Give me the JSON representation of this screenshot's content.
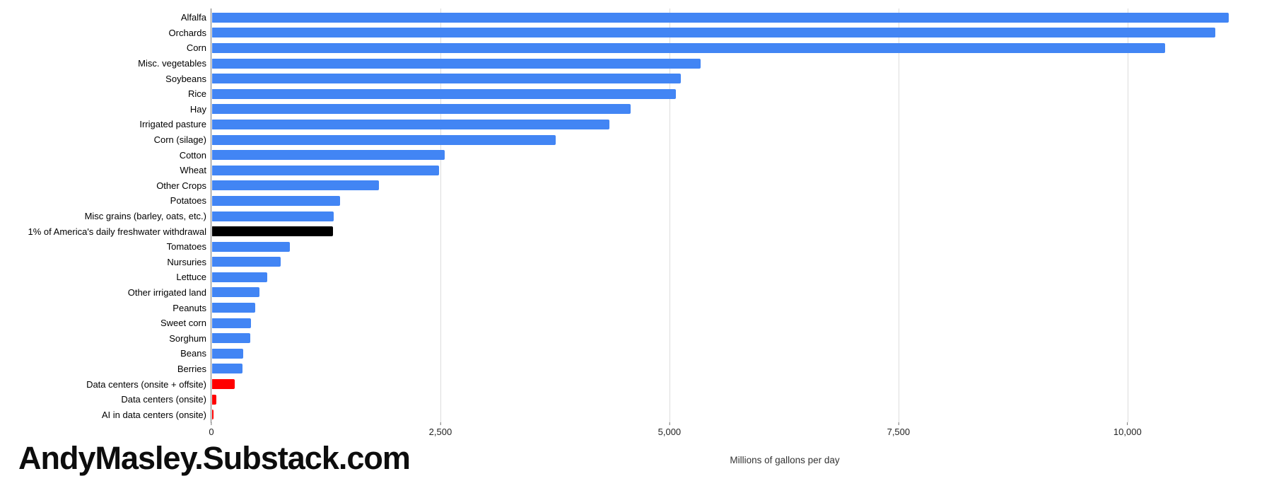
{
  "chart_data": {
    "type": "bar",
    "orientation": "horizontal",
    "title": "",
    "xlabel": "Millions of gallons per day",
    "xlim": [
      0,
      11730
    ],
    "grid": true,
    "legend": "none",
    "x_ticks": [
      {
        "label": "0",
        "value": 0
      },
      {
        "label": "2,500",
        "value": 2500
      },
      {
        "label": "5,000",
        "value": 5000
      },
      {
        "label": "7,500",
        "value": 7500
      },
      {
        "label": "10,000",
        "value": 10000
      }
    ],
    "colors": {
      "crops_blue": "#4285f4",
      "benchmark_black": "#000000",
      "datacenter_red": "#ff0000"
    },
    "series": [
      {
        "label": "Alfalfa",
        "value": 11100,
        "color": "#4285f4"
      },
      {
        "label": "Orchards",
        "value": 10950,
        "color": "#4285f4"
      },
      {
        "label": "Corn",
        "value": 10400,
        "color": "#4285f4"
      },
      {
        "label": "Misc. vegetables",
        "value": 5330,
        "color": "#4285f4"
      },
      {
        "label": "Soybeans",
        "value": 5120,
        "color": "#4285f4"
      },
      {
        "label": "Rice",
        "value": 5060,
        "color": "#4285f4"
      },
      {
        "label": "Hay",
        "value": 4570,
        "color": "#4285f4"
      },
      {
        "label": "Irrigated pasture",
        "value": 4340,
        "color": "#4285f4"
      },
      {
        "label": "Corn (silage)",
        "value": 3750,
        "color": "#4285f4"
      },
      {
        "label": "Cotton",
        "value": 2540,
        "color": "#4285f4"
      },
      {
        "label": "Wheat",
        "value": 2480,
        "color": "#4285f4"
      },
      {
        "label": "Other Crops",
        "value": 1820,
        "color": "#4285f4"
      },
      {
        "label": "Potatoes",
        "value": 1400,
        "color": "#4285f4"
      },
      {
        "label": "Misc grains (barley, oats, etc.)",
        "value": 1330,
        "color": "#4285f4"
      },
      {
        "label": "1% of America's daily freshwater withdrawal",
        "value": 1320,
        "color": "#000000"
      },
      {
        "label": "Tomatoes",
        "value": 850,
        "color": "#4285f4"
      },
      {
        "label": "Nursuries",
        "value": 750,
        "color": "#4285f4"
      },
      {
        "label": "Lettuce",
        "value": 600,
        "color": "#4285f4"
      },
      {
        "label": "Other irrigated land",
        "value": 515,
        "color": "#4285f4"
      },
      {
        "label": "Peanuts",
        "value": 470,
        "color": "#4285f4"
      },
      {
        "label": "Sweet corn",
        "value": 425,
        "color": "#4285f4"
      },
      {
        "label": "Sorghum",
        "value": 420,
        "color": "#4285f4"
      },
      {
        "label": "Beans",
        "value": 340,
        "color": "#4285f4"
      },
      {
        "label": "Berries",
        "value": 330,
        "color": "#4285f4"
      },
      {
        "label": "Data centers (onsite + offsite)",
        "value": 250,
        "color": "#ff0000"
      },
      {
        "label": "Data centers (onsite)",
        "value": 50,
        "color": "#ff0000"
      },
      {
        "label": "AI in data centers (onsite)",
        "value": 17,
        "color": "#ff0000"
      }
    ]
  },
  "watermark": "AndyMasley.Substack.com"
}
